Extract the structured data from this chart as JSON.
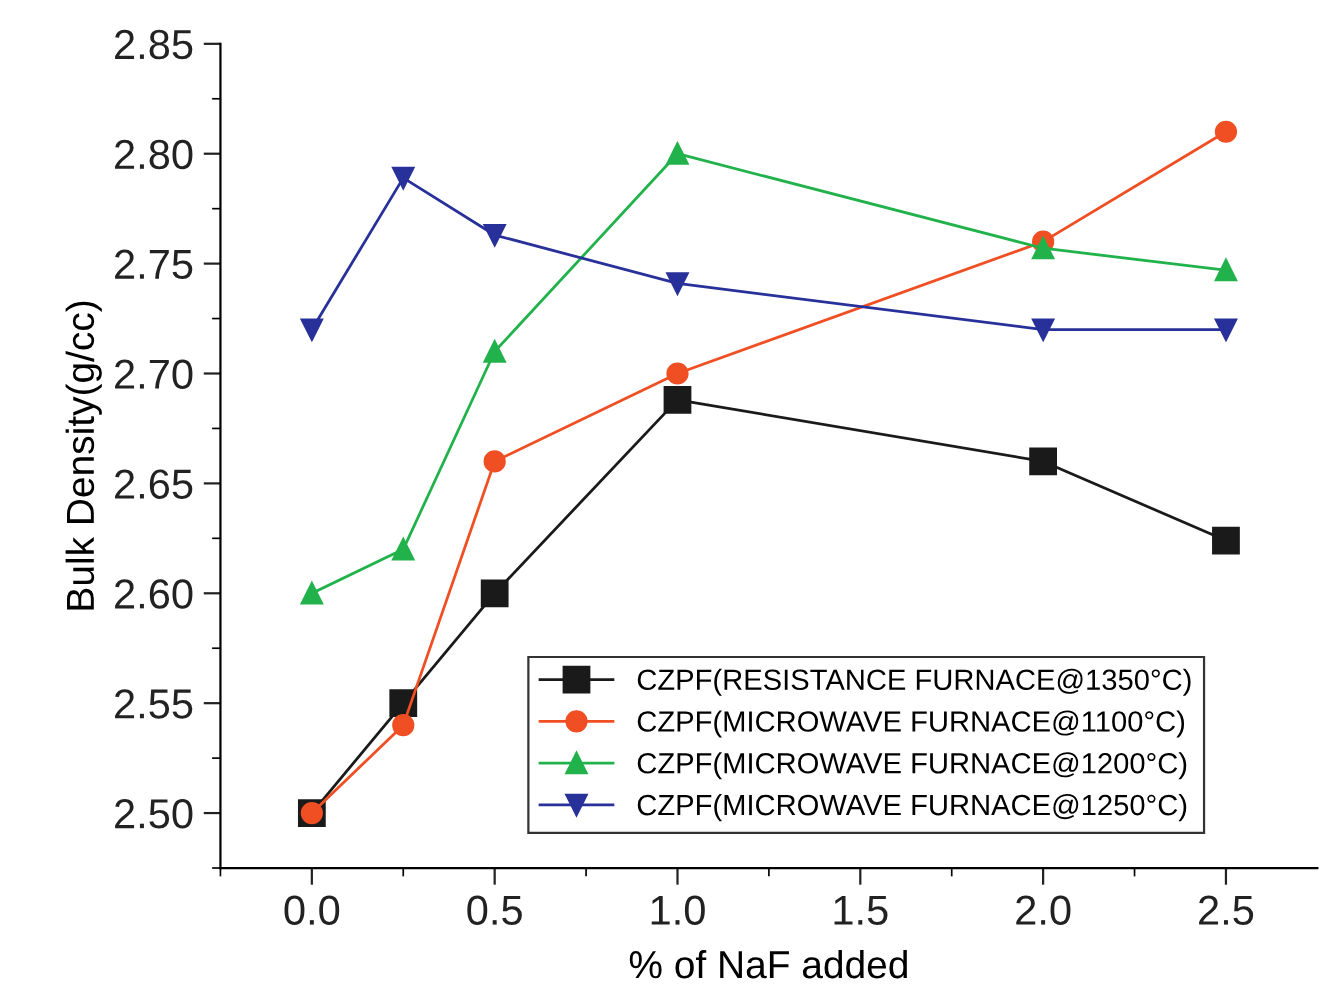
{
  "chart_data": {
    "type": "line",
    "xlabel": "% of NaF added",
    "ylabel": "Bulk Density(g/cc)",
    "x": [
      0,
      0.25,
      0.5,
      1.0,
      2.0,
      2.5
    ],
    "xlim": [
      -0.25,
      2.75
    ],
    "ylim": [
      2.475,
      2.85
    ],
    "xticks": [
      {
        "value": -0.25,
        "label": null
      },
      {
        "value": 0,
        "label": "0.0"
      },
      {
        "value": 0.25,
        "label": null
      },
      {
        "value": 0.5,
        "label": "0.5"
      },
      {
        "value": 0.75,
        "label": null
      },
      {
        "value": 1.0,
        "label": "1.0"
      },
      {
        "value": 1.25,
        "label": null
      },
      {
        "value": 1.5,
        "label": "1.5"
      },
      {
        "value": 1.75,
        "label": null
      },
      {
        "value": 2.0,
        "label": "2.0"
      },
      {
        "value": 2.25,
        "label": null
      },
      {
        "value": 2.5,
        "label": "2.5"
      }
    ],
    "yticks": [
      {
        "value": 2.475,
        "label": null
      },
      {
        "value": 2.5,
        "label": "2.50"
      },
      {
        "value": 2.525,
        "label": null
      },
      {
        "value": 2.55,
        "label": "2.55"
      },
      {
        "value": 2.575,
        "label": null
      },
      {
        "value": 2.6,
        "label": "2.60"
      },
      {
        "value": 2.625,
        "label": null
      },
      {
        "value": 2.65,
        "label": "2.65"
      },
      {
        "value": 2.675,
        "label": null
      },
      {
        "value": 2.7,
        "label": "2.70"
      },
      {
        "value": 2.725,
        "label": null
      },
      {
        "value": 2.75,
        "label": "2.75"
      },
      {
        "value": 2.775,
        "label": null
      },
      {
        "value": 2.8,
        "label": "2.80"
      },
      {
        "value": 2.825,
        "label": null
      },
      {
        "value": 2.85,
        "label": "2.85"
      }
    ],
    "grid": false,
    "legend": "bottom right",
    "line_style": "solid",
    "series": [
      {
        "name": "CZPF(RESISTANCE FURNACE@1350°C)",
        "color": "#1a1a1a",
        "marker": "square",
        "values": [
          2.5,
          2.55,
          2.6,
          2.688,
          2.66,
          2.624
        ]
      },
      {
        "name": "CZPF(MICROWAVE FURNACE@1100°C)",
        "color": "#f04e23",
        "marker": "circle",
        "values": [
          2.5,
          2.54,
          2.66,
          2.7,
          2.76,
          2.81
        ]
      },
      {
        "name": "CZPF(MICROWAVE FURNACE@1200°C)",
        "color": "#22b24c",
        "marker": "triangle",
        "values": [
          2.6,
          2.62,
          2.71,
          2.8,
          2.757,
          2.747
        ]
      },
      {
        "name": "CZPF(MICROWAVE FURNACE@1250°C)",
        "color": "#28309a",
        "marker": "triangle_down",
        "values": [
          2.72,
          2.789,
          2.763,
          2.741,
          2.72,
          2.72
        ]
      }
    ]
  }
}
